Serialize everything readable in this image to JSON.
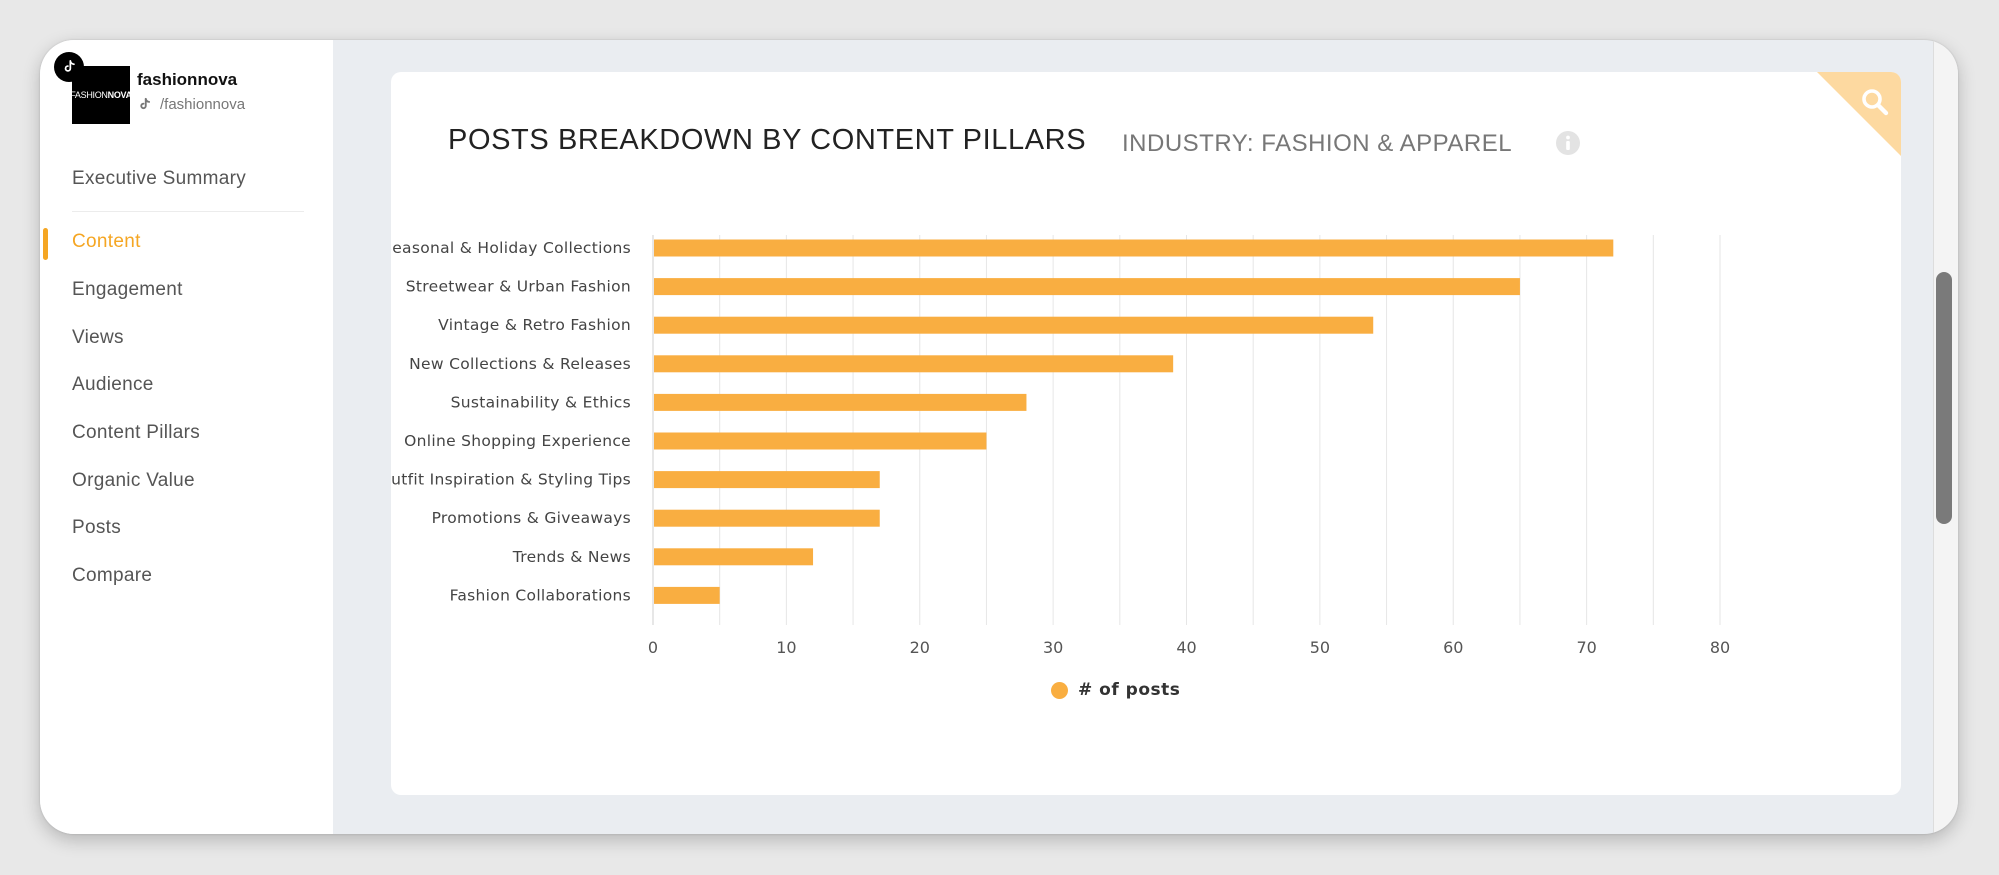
{
  "profile": {
    "name": "fashionnova",
    "handle": "/fashionnova",
    "logo_text_light": "FASHION",
    "logo_text_bold": "NOVA"
  },
  "sidebar": {
    "items": [
      {
        "label": "Executive Summary"
      },
      {
        "label": "Content"
      },
      {
        "label": "Engagement"
      },
      {
        "label": "Views"
      },
      {
        "label": "Audience"
      },
      {
        "label": "Content Pillars"
      },
      {
        "label": "Organic Value"
      },
      {
        "label": "Posts"
      },
      {
        "label": "Compare"
      }
    ],
    "active": "Content"
  },
  "card": {
    "title": "POSTS BREAKDOWN BY CONTENT PILLARS",
    "subtitle": "INDUSTRY: FASHION & APPAREL"
  },
  "icons": {
    "corner": "search-icon",
    "info": "info-icon",
    "platform": "tiktok-icon"
  },
  "colors": {
    "accent": "#f5a623",
    "bar": "#f9ae41",
    "corner": "#fdd9a0"
  },
  "chart_data": {
    "type": "bar",
    "orientation": "horizontal",
    "categories": [
      "Seasonal & Holiday Collections",
      "Streetwear & Urban Fashion",
      "Vintage & Retro Fashion",
      "New Collections & Releases",
      "Sustainability & Ethics",
      "Online Shopping Experience",
      "Outfit Inspiration & Styling Tips",
      "Promotions & Giveaways",
      "Trends & News",
      "Fashion Collaborations"
    ],
    "series": [
      {
        "name": "# of posts",
        "values": [
          72,
          65,
          54,
          39,
          28,
          25,
          17,
          17,
          12,
          5
        ]
      }
    ],
    "xlim": [
      0,
      80
    ],
    "xticks": [
      0,
      10,
      20,
      30,
      40,
      50,
      60,
      70,
      80
    ],
    "grid": true,
    "legend_position": "bottom"
  }
}
